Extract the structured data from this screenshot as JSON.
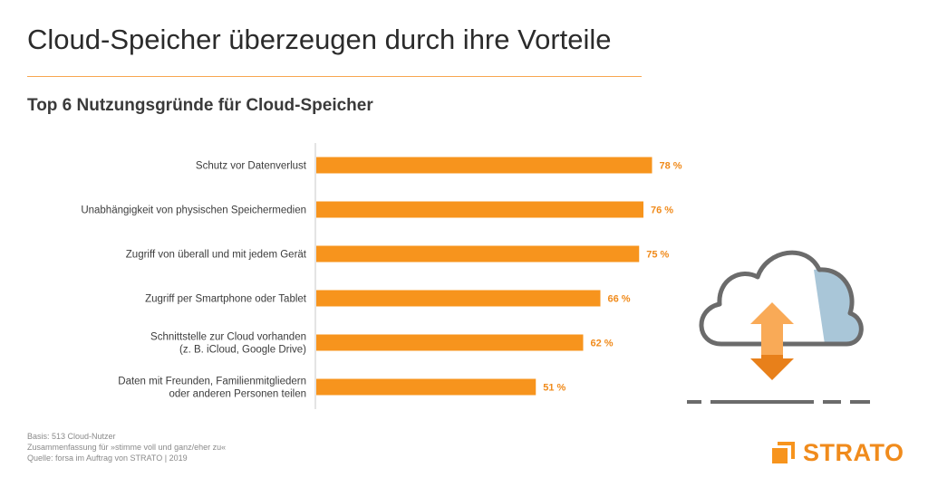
{
  "header": {
    "title": "Cloud-Speicher überzeugen durch ihre Vorteile",
    "subtitle": "Top 6 Nutzungsgründe für Cloud-Speicher"
  },
  "chart_data": {
    "type": "bar",
    "orientation": "horizontal",
    "title": "Top 6 Nutzungsgründe für Cloud-Speicher",
    "categories": [
      [
        "Schutz vor Datenverlust"
      ],
      [
        "Unabhängigkeit von physischen Speichermedien"
      ],
      [
        "Zugriff von überall und mit jedem Gerät"
      ],
      [
        "Zugriff per Smartphone oder Tablet"
      ],
      [
        "Schnittstelle zur Cloud vorhanden",
        "(z. B. iCloud, Google Drive)"
      ],
      [
        "Daten mit Freunden, Familienmitgliedern",
        "oder anderen Personen teilen"
      ]
    ],
    "values": [
      78,
      76,
      75,
      66,
      62,
      51
    ],
    "value_labels": [
      "78 %",
      "76 %",
      "75 %",
      "66 %",
      "62 %",
      "51 %"
    ],
    "xlim": [
      0,
      100
    ],
    "unit": "%",
    "grid": false,
    "bar_color": "#f7941d",
    "label_color": "#f08b1c"
  },
  "footnotes": {
    "basis": "Basis: 513 Cloud-Nutzer",
    "summary": "Zusammenfassung für »stimme voll und ganz/eher zu«",
    "source": "Quelle: forsa im Auftrag von STRATO | 2019"
  },
  "brand": {
    "name": "STRATO",
    "accent": "#f7941d"
  },
  "illustration": {
    "icon": "cloud-upload-download-icon"
  }
}
